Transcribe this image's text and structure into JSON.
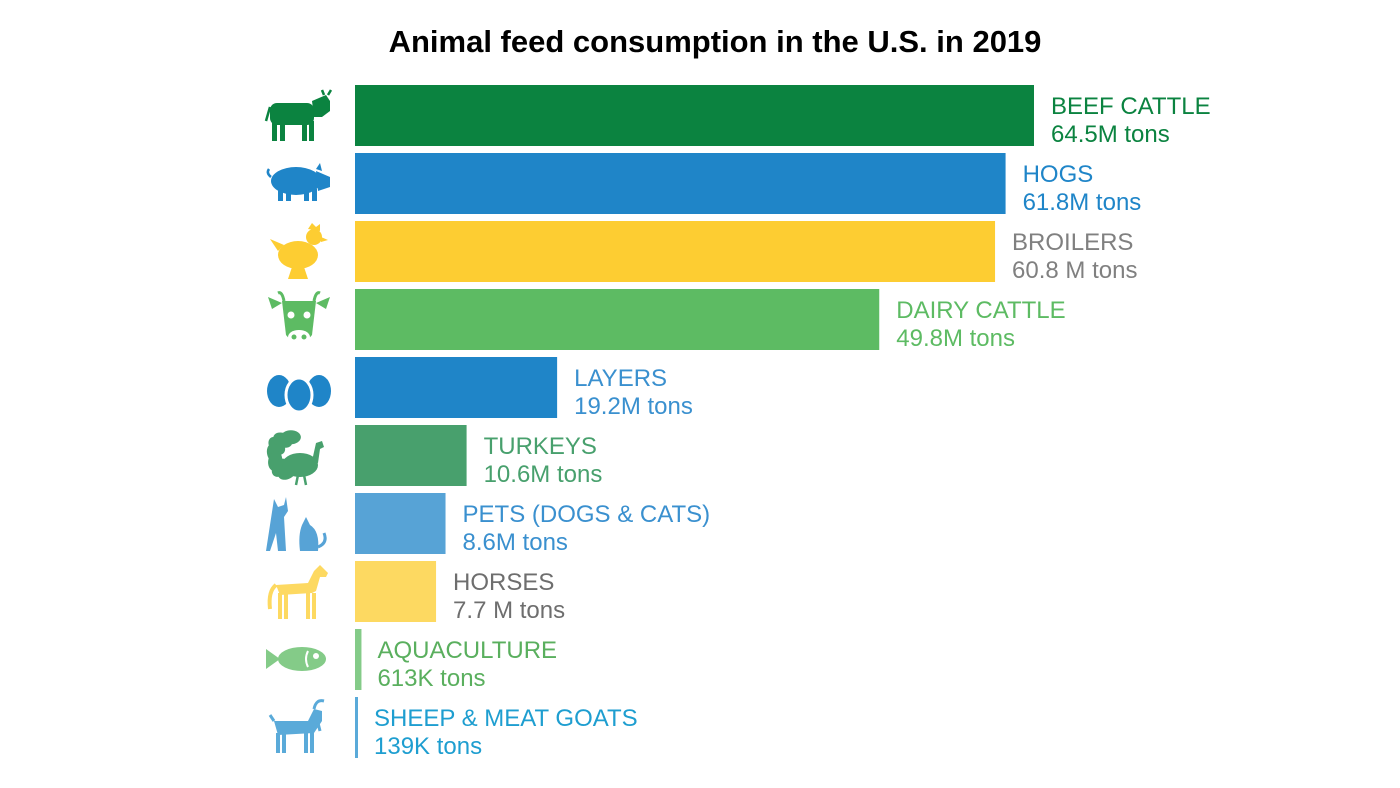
{
  "chart_data": {
    "type": "bar",
    "orientation": "horizontal",
    "title": "Animal feed consumption in the U.S. in 2019",
    "xlabel": "",
    "ylabel": "",
    "unit": "million tons",
    "xlim": [
      0,
      64.5
    ],
    "grid": false,
    "legend": "none",
    "categories": [
      "BEEF CATTLE",
      "HOGS",
      "BROILERS",
      "DAIRY CATTLE",
      "LAYERS",
      "TURKEYS",
      "PETS (DOGS & CATS)",
      "HORSES",
      "AQUACULTURE",
      "SHEEP & MEAT GOATS"
    ],
    "values": [
      64.5,
      61.8,
      60.8,
      49.8,
      19.2,
      10.6,
      8.6,
      7.7,
      0.613,
      0.139
    ],
    "value_labels": [
      "64.5M tons",
      "61.8M tons",
      "60.8 M tons",
      "49.8M tons",
      "19.2M tons",
      "10.6M tons",
      "8.6M tons",
      "7.7 M tons",
      "613K tons",
      "139K tons"
    ],
    "bar_colors": [
      "#0b8340",
      "#1f85c8",
      "#fdcd32",
      "#5dbb63",
      "#1f85c8",
      "#48a06d",
      "#57a3d6",
      "#fdd961",
      "#84cb88",
      "#5aaad9"
    ],
    "label_colors": [
      "#0b8340",
      "#1f85c8",
      "#808080",
      "#5dbb63",
      "#3a90cf",
      "#48a06d",
      "#3a90cf",
      "#6e6e6e",
      "#5aaf5e",
      "#1e9ed0"
    ],
    "icons": [
      "cow-icon",
      "pig-icon",
      "chicken-icon",
      "dairy-cow-icon",
      "eggs-icon",
      "turkey-icon",
      "dog-cat-icon",
      "horse-icon",
      "fish-icon",
      "goat-icon"
    ]
  }
}
